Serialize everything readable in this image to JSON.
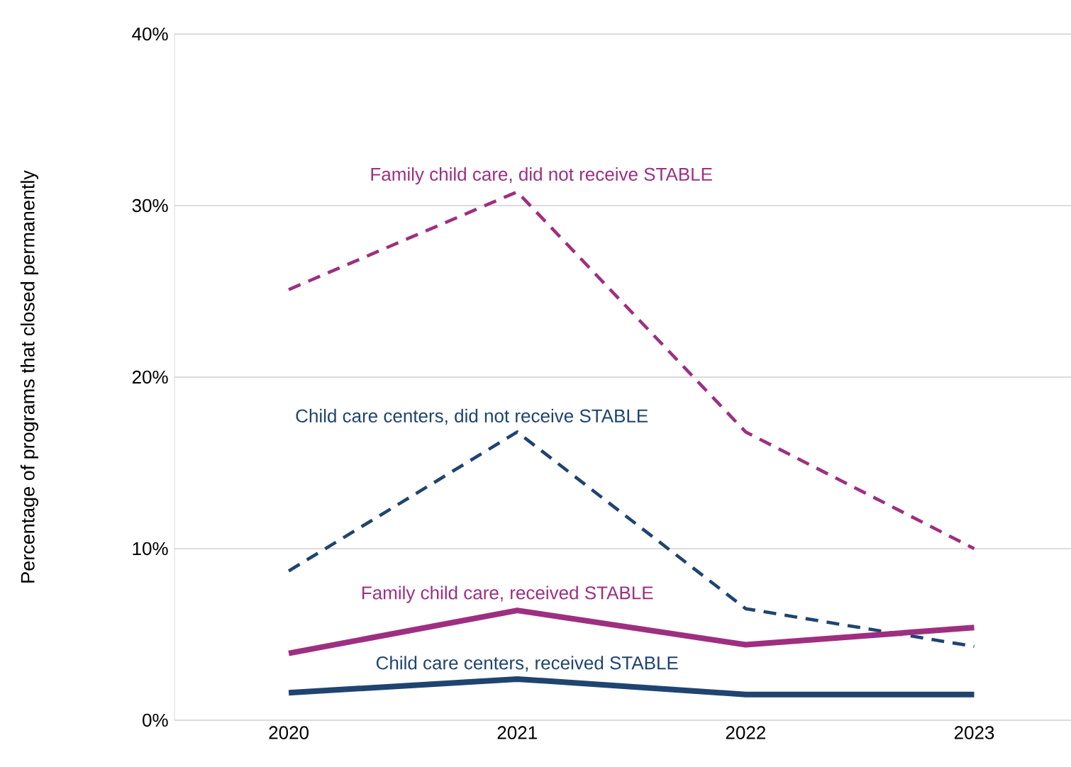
{
  "chart_data": {
    "type": "line",
    "ylabel": "Percentage of programs that closed permanently",
    "categories": [
      "2020",
      "2021",
      "2022",
      "2023"
    ],
    "series": [
      {
        "name": "Family child care, did not receive STABLE",
        "color": "#9e2f80",
        "line_style": "dashed",
        "values": [
          25.1,
          30.8,
          16.8,
          10.0
        ]
      },
      {
        "name": "Child care centers, did not receive STABLE",
        "color": "#1f4470",
        "line_style": "dashed",
        "values": [
          8.7,
          16.8,
          6.5,
          4.3
        ]
      },
      {
        "name": "Family child care, received STABLE",
        "color": "#9e2f80",
        "line_style": "solid",
        "values": [
          3.9,
          6.4,
          4.4,
          5.4
        ]
      },
      {
        "name": "Child care centers, received STABLE",
        "color": "#1f4470",
        "line_style": "solid",
        "values": [
          1.6,
          2.4,
          1.5,
          1.5
        ]
      }
    ],
    "ylim": [
      0,
      40
    ],
    "yticks": [
      {
        "value": 0,
        "label": "0%"
      },
      {
        "value": 10,
        "label": "10%"
      },
      {
        "value": 20,
        "label": "20%"
      },
      {
        "value": 30,
        "label": "30%"
      },
      {
        "value": 40,
        "label": "40%"
      }
    ],
    "grid": "y",
    "marker": "none"
  }
}
